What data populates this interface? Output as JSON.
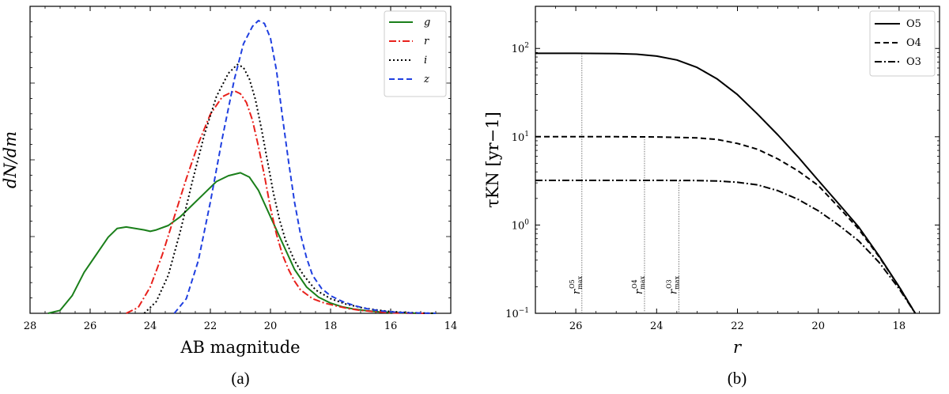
{
  "figure": {
    "captions": [
      "(a)",
      "(b)"
    ]
  },
  "chart_data": [
    {
      "type": "line",
      "panel": "(a)",
      "xlabel": "AB magnitude",
      "ylabel": "dN/dm",
      "xlim": [
        28,
        14
      ],
      "ylim": [
        0,
        1
      ],
      "x_inverted": true,
      "y_ticklabels_shown": false,
      "x_ticks": [
        28,
        26,
        24,
        22,
        20,
        18,
        16,
        14
      ],
      "legend_position": "top-right",
      "series": [
        {
          "name": "g",
          "color": "#1a7f1a",
          "dash": "solid",
          "x": [
            27.4,
            27.0,
            26.6,
            26.2,
            25.8,
            25.4,
            25.1,
            24.8,
            24.5,
            24.2,
            24.0,
            23.8,
            23.4,
            23.0,
            22.6,
            22.2,
            21.8,
            21.4,
            21.0,
            20.7,
            20.4,
            20.0,
            19.6,
            19.2,
            18.8,
            18.4,
            18.0,
            17.6,
            17.2,
            16.8,
            16.4,
            16.0,
            15.5,
            15.0,
            14.5
          ],
          "values": [
            0.0,
            0.01,
            0.06,
            0.14,
            0.2,
            0.26,
            0.29,
            0.295,
            0.29,
            0.285,
            0.28,
            0.285,
            0.3,
            0.33,
            0.37,
            0.41,
            0.45,
            0.47,
            0.48,
            0.465,
            0.42,
            0.33,
            0.24,
            0.15,
            0.09,
            0.055,
            0.035,
            0.022,
            0.014,
            0.009,
            0.005,
            0.003,
            0.001,
            0.0,
            0.0
          ]
        },
        {
          "name": "r",
          "color": "#e8211c",
          "dash": "dashdot",
          "x": [
            24.8,
            24.4,
            24.0,
            23.6,
            23.2,
            22.8,
            22.4,
            22.0,
            21.6,
            21.2,
            21.0,
            20.8,
            20.6,
            20.4,
            20.2,
            20.0,
            19.8,
            19.6,
            19.4,
            19.2,
            19.0,
            18.6,
            18.2,
            17.8,
            17.4,
            17.0,
            16.6,
            16.2,
            15.8,
            15.2,
            14.6
          ],
          "values": [
            0.0,
            0.02,
            0.09,
            0.2,
            0.33,
            0.46,
            0.58,
            0.68,
            0.74,
            0.76,
            0.75,
            0.72,
            0.66,
            0.57,
            0.47,
            0.36,
            0.27,
            0.2,
            0.15,
            0.11,
            0.08,
            0.05,
            0.035,
            0.025,
            0.016,
            0.01,
            0.006,
            0.003,
            0.001,
            0.0,
            0.0
          ]
        },
        {
          "name": "i",
          "color": "#000000",
          "dash": "dotted",
          "x": [
            24.2,
            23.8,
            23.4,
            23.0,
            22.6,
            22.2,
            21.8,
            21.4,
            21.1,
            20.9,
            20.7,
            20.5,
            20.3,
            20.1,
            19.9,
            19.7,
            19.5,
            19.2,
            18.9,
            18.5,
            18.0,
            17.5,
            17.0,
            16.5,
            16.0,
            15.5,
            15.0,
            14.5
          ],
          "values": [
            0.0,
            0.04,
            0.13,
            0.28,
            0.45,
            0.61,
            0.74,
            0.82,
            0.85,
            0.84,
            0.8,
            0.73,
            0.63,
            0.52,
            0.41,
            0.32,
            0.25,
            0.18,
            0.13,
            0.08,
            0.05,
            0.032,
            0.02,
            0.012,
            0.006,
            0.003,
            0.001,
            0.0
          ]
        },
        {
          "name": "z",
          "color": "#1f3fe0",
          "dash": "dashed",
          "x": [
            23.2,
            22.8,
            22.4,
            22.0,
            21.6,
            21.2,
            20.9,
            20.6,
            20.4,
            20.2,
            20.0,
            19.8,
            19.6,
            19.4,
            19.2,
            19.0,
            18.8,
            18.6,
            18.3,
            18.0,
            17.6,
            17.2,
            16.8,
            16.4,
            16.0,
            15.5,
            15.0,
            14.5
          ],
          "values": [
            0.0,
            0.05,
            0.18,
            0.38,
            0.6,
            0.8,
            0.92,
            0.98,
            1.0,
            0.99,
            0.94,
            0.83,
            0.67,
            0.52,
            0.38,
            0.27,
            0.19,
            0.13,
            0.085,
            0.06,
            0.04,
            0.026,
            0.016,
            0.009,
            0.005,
            0.002,
            0.001,
            0.0
          ]
        }
      ]
    },
    {
      "type": "line",
      "panel": "(b)",
      "xlabel": "r",
      "ylabel": "τKN [yr−1]",
      "xlim": [
        27,
        17
      ],
      "x_inverted": true,
      "yscale": "log",
      "ylim": [
        0.1,
        300
      ],
      "x_ticks": [
        26,
        24,
        22,
        20,
        18
      ],
      "y_ticks": [
        0.1,
        1,
        10,
        100
      ],
      "y_ticklabels": [
        {
          "base": "10",
          "exp": "−1"
        },
        {
          "base": "10",
          "exp": "0"
        },
        {
          "base": "10",
          "exp": "1"
        },
        {
          "base": "10",
          "exp": "2"
        }
      ],
      "legend_position": "top-right",
      "series": [
        {
          "name": "O5",
          "dash": "solid",
          "x": [
            27,
            26,
            25,
            24.5,
            24,
            23.5,
            23,
            22.5,
            22,
            21.5,
            21,
            20.5,
            20,
            19.5,
            19,
            18.5,
            18,
            17.6
          ],
          "values": [
            88,
            88,
            87.5,
            86,
            82,
            74,
            61,
            45,
            30,
            18,
            10.5,
            5.9,
            3.2,
            1.75,
            0.95,
            0.45,
            0.2,
            0.1
          ]
        },
        {
          "name": "O4",
          "dash": "dashed",
          "x": [
            27,
            26,
            25,
            24,
            23,
            22.5,
            22,
            21.5,
            21,
            20.5,
            20,
            19.5,
            19,
            18.5,
            18,
            17.6
          ],
          "values": [
            10,
            10,
            10,
            9.95,
            9.7,
            9.3,
            8.4,
            7.2,
            5.6,
            4.1,
            2.8,
            1.6,
            0.9,
            0.44,
            0.2,
            0.1
          ]
        },
        {
          "name": "O3",
          "dash": "dashdot",
          "x": [
            27,
            26,
            25,
            24,
            23,
            22.5,
            22,
            21.5,
            21,
            20.5,
            20,
            19.5,
            19,
            18.5,
            18,
            17.6
          ],
          "values": [
            3.2,
            3.2,
            3.2,
            3.2,
            3.19,
            3.15,
            3.05,
            2.85,
            2.45,
            1.95,
            1.45,
            1.0,
            0.66,
            0.38,
            0.19,
            0.1
          ]
        }
      ],
      "vertical_markers": [
        {
          "x": 25.85,
          "sub": "max",
          "sup": "O5"
        },
        {
          "x": 24.3,
          "sub": "max",
          "sup": "O4"
        },
        {
          "x": 23.45,
          "sub": "max",
          "sup": "O3"
        }
      ],
      "marker_symbol": "r"
    }
  ]
}
